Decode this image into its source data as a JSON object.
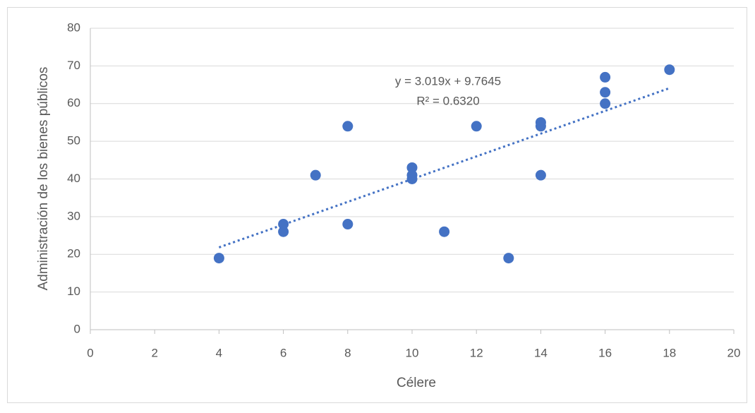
{
  "chart_data": {
    "type": "scatter",
    "xlabel": "Célere",
    "ylabel": "Administración de los bienes públicos",
    "series": [
      {
        "color": "#4472c4",
        "x": [
          4,
          6,
          6,
          7,
          8,
          8,
          10,
          10,
          10,
          11,
          12,
          13,
          14,
          14,
          14,
          16,
          16,
          16,
          18
        ],
        "values": [
          19,
          28,
          26,
          41,
          54,
          28,
          43,
          41,
          40,
          26,
          54,
          19,
          55,
          54,
          41,
          67,
          63,
          60,
          69
        ]
      }
    ],
    "trendline": {
      "slope": 3.019,
      "intercept": 9.7645,
      "equation": "y = 3.019x + 9.7645",
      "r2": "R² = 0.6320"
    },
    "xlim": [
      0,
      20
    ],
    "xticks": [
      0,
      2,
      4,
      6,
      8,
      10,
      12,
      14,
      16,
      18,
      20
    ],
    "ylim": [
      0,
      80
    ],
    "yticks": [
      0,
      10,
      20,
      30,
      40,
      50,
      60,
      70,
      80
    ],
    "grid": true
  }
}
